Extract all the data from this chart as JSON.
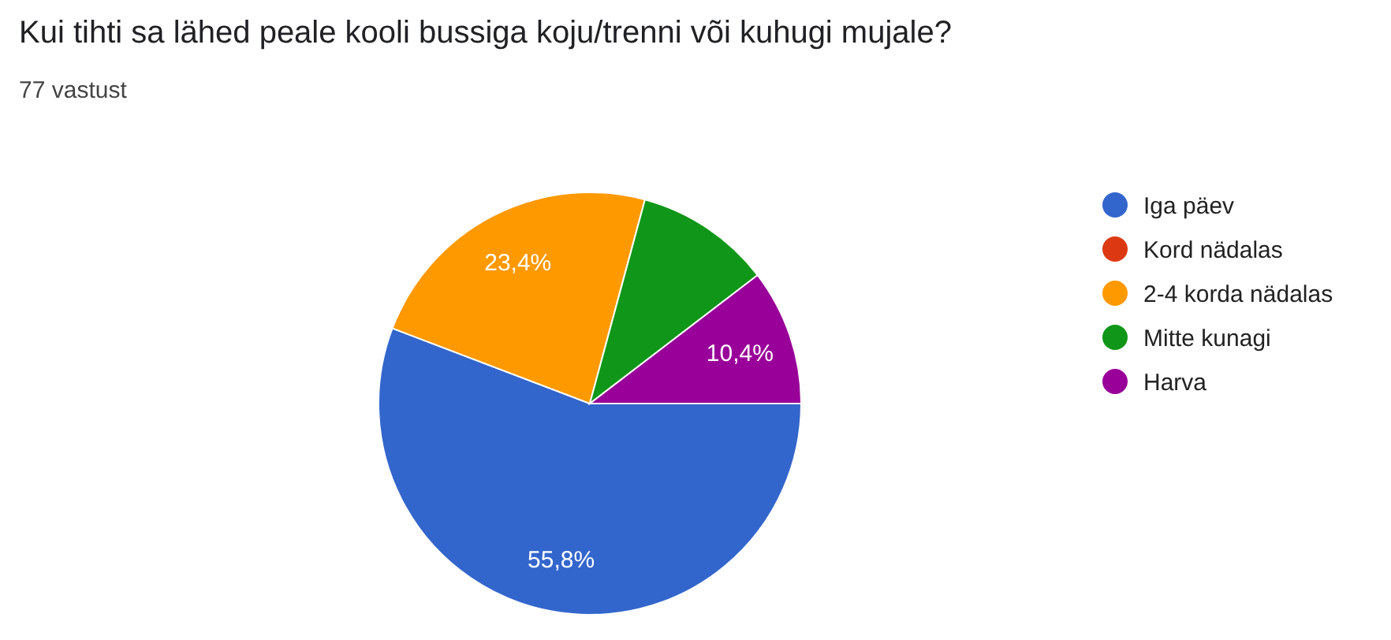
{
  "chart_data": {
    "type": "pie",
    "title": "Kui tihti sa lähed peale kooli bussiga koju/trenni või kuhugi mujale?",
    "subtitle": "77 vastust",
    "categories": [
      "Iga päev",
      "Kord nädalas",
      "2-4 korda nädalas",
      "Mitte kunagi",
      "Harva"
    ],
    "values": [
      55.8,
      0,
      23.4,
      10.4,
      10.4
    ],
    "colors": [
      "#3366cc",
      "#dc3912",
      "#ff9900",
      "#109618",
      "#990099"
    ],
    "value_labels": [
      "55,8%",
      null,
      "23,4%",
      null,
      "10,4%"
    ],
    "legend": "right"
  }
}
